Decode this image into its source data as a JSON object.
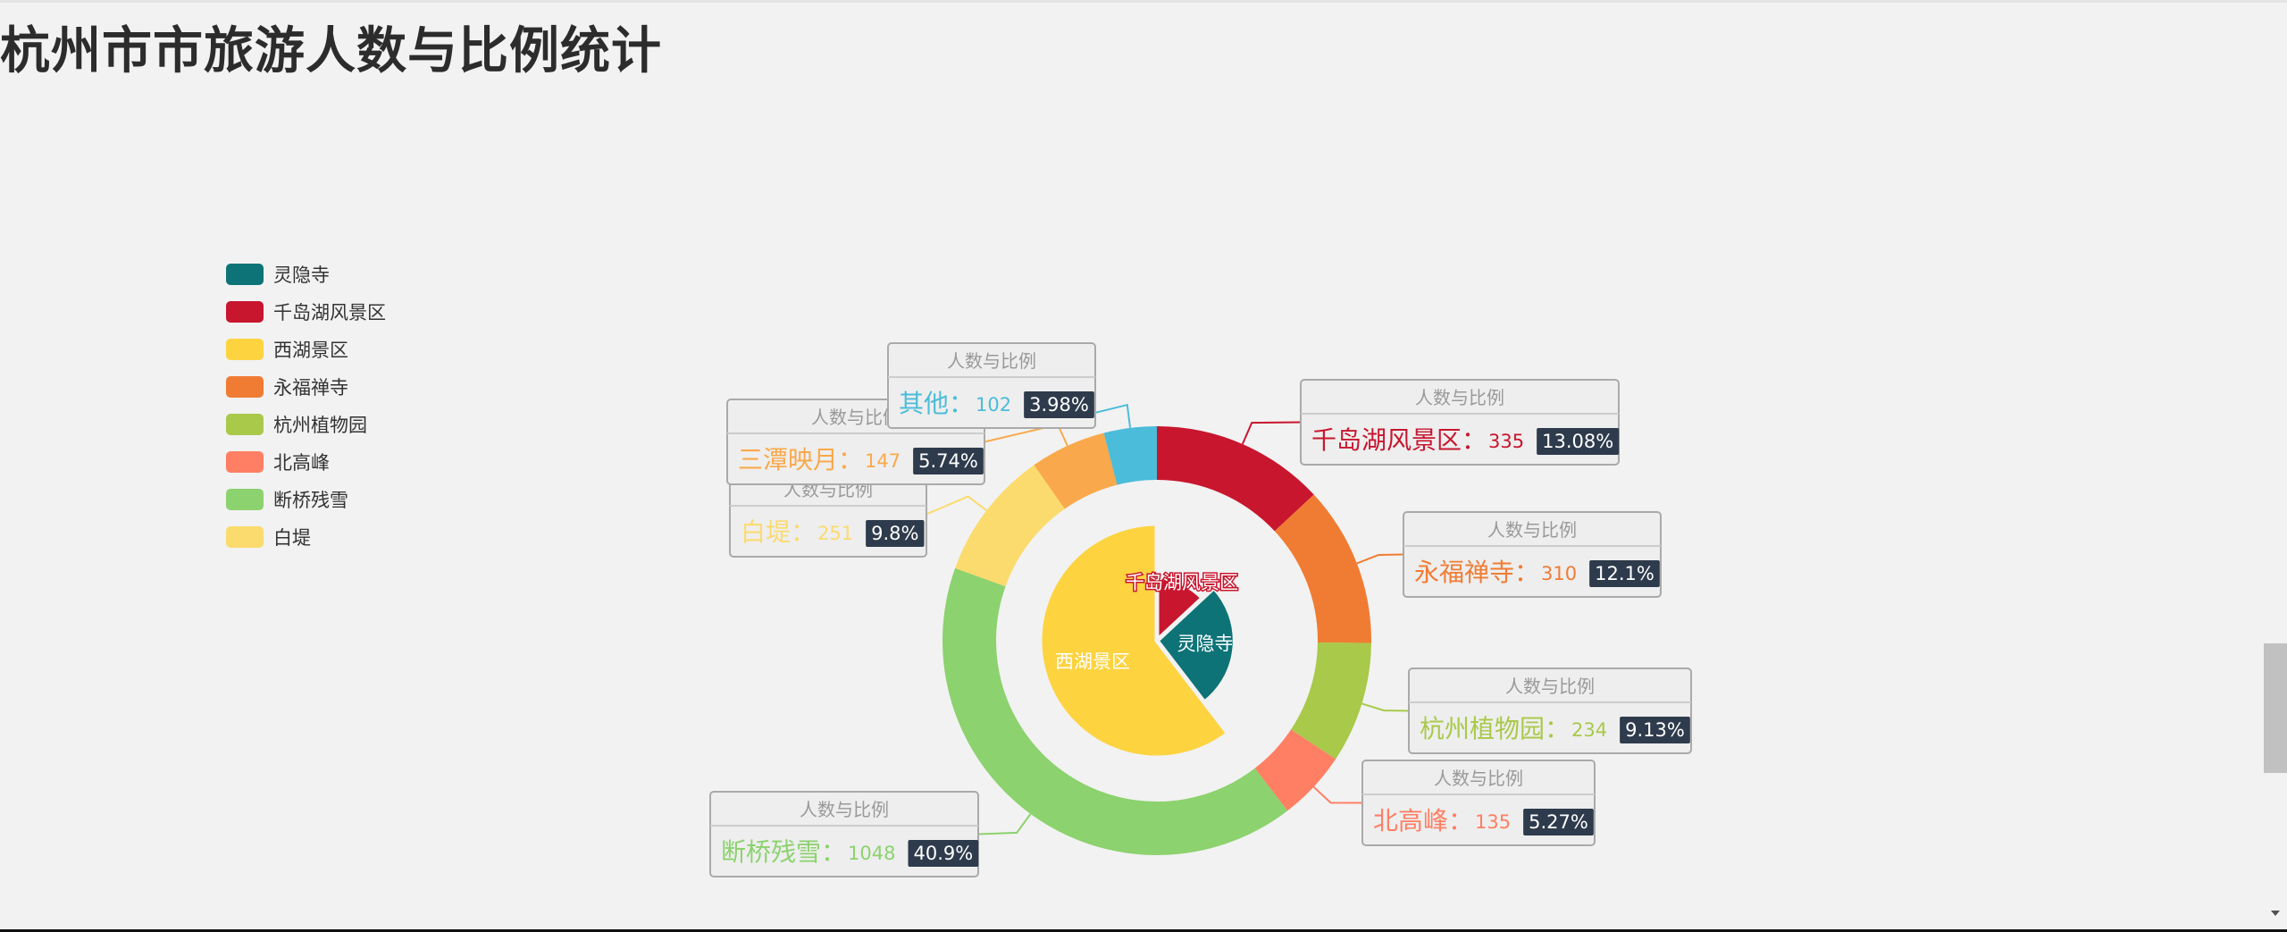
{
  "page": {
    "title": "杭州市市旅游人数与比例统计"
  },
  "colors": {
    "background": "#f2f2f2",
    "title": "#2c2c2c",
    "badge": "#2e3b4c",
    "tooltip_border": "#aaaaaa",
    "tooltip_bg": "#eeeeee"
  },
  "chart_data": {
    "type": "pie",
    "legend_position": "left",
    "legend": [
      {
        "name": "灵隐寺",
        "color": "#0d7377"
      },
      {
        "name": "千岛湖风景区",
        "color": "#c8162e"
      },
      {
        "name": "西湖景区",
        "color": "#fdd340"
      },
      {
        "name": "永福禅寺",
        "color": "#f07c33"
      },
      {
        "name": "杭州植物园",
        "color": "#a9c94a"
      },
      {
        "name": "北高峰",
        "color": "#ff7f64"
      },
      {
        "name": "断桥残雪",
        "color": "#8cd26e"
      },
      {
        "name": "白堤",
        "color": "#fbdb6e"
      }
    ],
    "inner_series": {
      "rose_type": "radius",
      "slices": [
        {
          "name": "千岛湖风景区",
          "value": 335,
          "color": "#c8162e"
        },
        {
          "name": "灵隐寺",
          "value": 679,
          "color": "#0d7377"
        },
        {
          "name": "西湖景区",
          "value": 1548,
          "color": "#fdd340"
        }
      ]
    },
    "outer_series": {
      "tooltip_header": "人数与比例",
      "slices": [
        {
          "name": "千岛湖风景区",
          "value": 335,
          "percent": "13.08%",
          "color": "#c8162e"
        },
        {
          "name": "永福禅寺",
          "value": 310,
          "percent": "12.1%",
          "color": "#f07c33"
        },
        {
          "name": "杭州植物园",
          "value": 234,
          "percent": "9.13%",
          "color": "#a9c94a"
        },
        {
          "name": "北高峰",
          "value": 135,
          "percent": "5.27%",
          "color": "#ff7f64"
        },
        {
          "name": "断桥残雪",
          "value": 1048,
          "percent": "40.9%",
          "color": "#8cd26e"
        },
        {
          "name": "白堤",
          "value": 251,
          "percent": "9.8%",
          "color": "#fbdb6e"
        },
        {
          "name": "三潭映月",
          "value": 147,
          "percent": "5.74%",
          "color": "#f9a94b"
        },
        {
          "name": "其他",
          "value": 102,
          "percent": "3.98%",
          "color": "#4bbcd9"
        }
      ]
    }
  }
}
